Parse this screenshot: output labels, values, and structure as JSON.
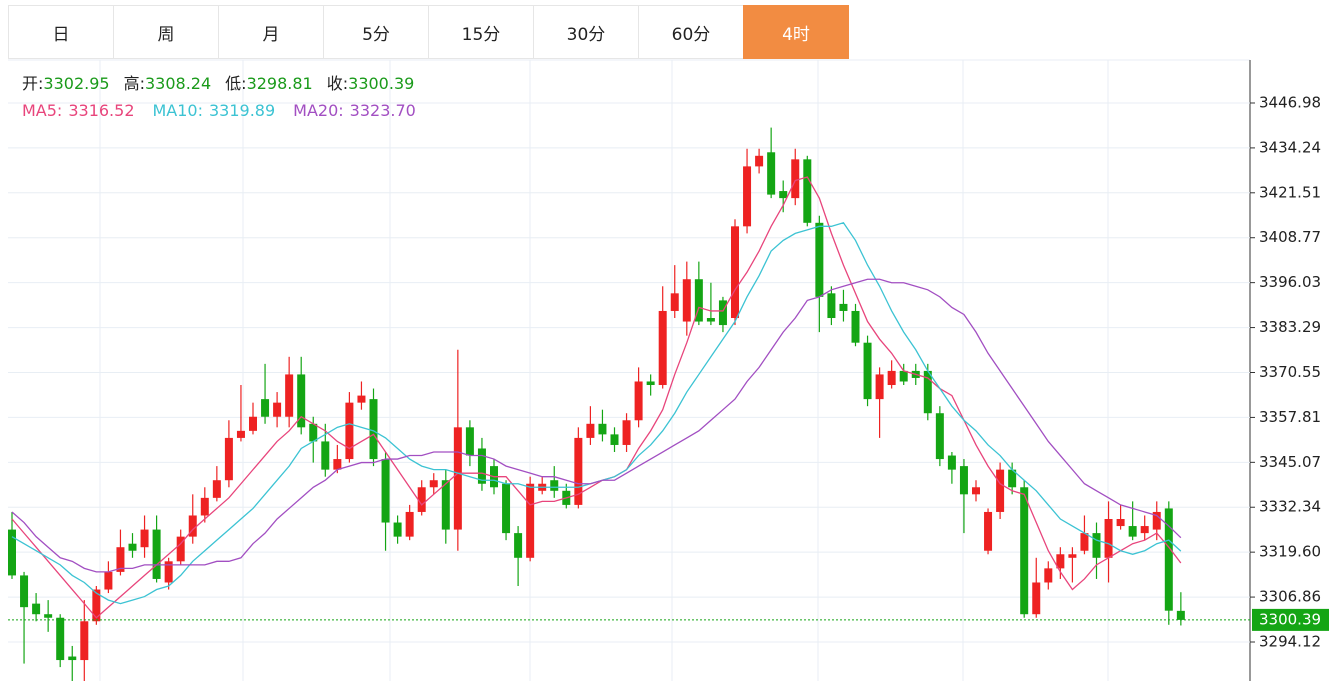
{
  "tabs": [
    "日",
    "周",
    "月",
    "5分",
    "15分",
    "30分",
    "60分",
    "4时"
  ],
  "active_tab": 7,
  "chart_data": {
    "type": "candlestick",
    "ohlc_labels": [
      "开:",
      "高:",
      "低:",
      "收:"
    ],
    "open": [
      3326,
      3313,
      3305,
      3302,
      3301,
      3290,
      3289,
      3300,
      3309,
      3314,
      3322,
      3321,
      3326,
      3311,
      3317,
      3324,
      3330,
      3335,
      3340,
      3352,
      3354,
      3363,
      3358,
      3358,
      3370,
      3356,
      3351,
      3343,
      3346,
      3362,
      3363,
      3346,
      3328,
      3324,
      3331,
      3338,
      3340,
      3326,
      3355,
      3349,
      3344,
      3339,
      3325,
      3318,
      3337,
      3340,
      3337,
      3333,
      3352,
      3356,
      3353,
      3350,
      3357,
      3368,
      3367,
      3388,
      3385,
      3397,
      3386,
      3391,
      3386,
      3412,
      3429,
      3433,
      3422,
      3420,
      3431,
      3413,
      3393,
      3390,
      3388,
      3379,
      3363,
      3367,
      3371,
      3371,
      3371,
      3359,
      3347,
      3344,
      3336,
      3320,
      3331,
      3343,
      3338,
      3302,
      3311,
      3315,
      3318,
      3320,
      3325,
      3318,
      3327,
      3327,
      3325,
      3326,
      3332,
      3302.95
    ],
    "high": [
      3331,
      3314,
      3308,
      3306,
      3302,
      3293,
      3306,
      3310,
      3317,
      3326,
      3325,
      3330,
      3330,
      3318,
      3326,
      3336,
      3338,
      3344,
      3357,
      3367,
      3362,
      3373,
      3365,
      3375,
      3375,
      3358,
      3356,
      3350,
      3365,
      3368,
      3366,
      3348,
      3330,
      3333,
      3340,
      3342,
      3343,
      3377,
      3357,
      3352,
      3346,
      3340,
      3327,
      3341,
      3341,
      3344,
      3339,
      3355,
      3361,
      3360,
      3355,
      3359,
      3372,
      3370,
      3395,
      3401,
      3402,
      3402,
      3396,
      3392,
      3414,
      3434,
      3434,
      3440,
      3425,
      3434,
      3432,
      3415,
      3395,
      3394,
      3390,
      3381,
      3372,
      3374,
      3373,
      3373,
      3373,
      3361,
      3348,
      3346,
      3340,
      3332,
      3345,
      3345,
      3340,
      3318,
      3317,
      3321,
      3321,
      3330,
      3328,
      3334,
      3333,
      3334,
      3330,
      3334,
      3334,
      3308.24
    ],
    "low": [
      3312,
      3288,
      3300,
      3297,
      3287,
      3283,
      3283,
      3299,
      3308,
      3313,
      3318,
      3318,
      3311,
      3309,
      3316,
      3322,
      3328,
      3334,
      3338,
      3351,
      3353,
      3356,
      3355,
      3355,
      3353,
      3345,
      3341,
      3342,
      3345,
      3360,
      3344,
      3320,
      3322,
      3323,
      3330,
      3336,
      3322,
      3320,
      3344,
      3337,
      3336,
      3323,
      3310,
      3317,
      3336,
      3335,
      3332,
      3332,
      3350,
      3351,
      3348,
      3348,
      3355,
      3364,
      3366,
      3386,
      3381,
      3384,
      3384,
      3382,
      3384,
      3410,
      3427,
      3420,
      3416,
      3418,
      3412,
      3382,
      3384,
      3385,
      3378,
      3361,
      3352,
      3366,
      3367,
      3367,
      3357,
      3344,
      3339,
      3325,
      3334,
      3319,
      3329,
      3336,
      3301,
      3301,
      3309,
      3312,
      3311,
      3319,
      3312,
      3311,
      3326,
      3323,
      3323,
      3323,
      3299,
      3298.81
    ],
    "close": [
      3313,
      3304,
      3302,
      3301,
      3289,
      3289,
      3300,
      3309,
      3314,
      3321,
      3320,
      3326,
      3312,
      3317,
      3324,
      3330,
      3335,
      3340,
      3352,
      3354,
      3358,
      3358,
      3362,
      3370,
      3355,
      3351,
      3343,
      3346,
      3362,
      3364,
      3346,
      3328,
      3324,
      3331,
      3338,
      3340,
      3326,
      3355,
      3347,
      3339,
      3338,
      3325,
      3318,
      3339,
      3339,
      3337,
      3333,
      3352,
      3356,
      3353,
      3350,
      3357,
      3368,
      3367,
      3388,
      3393,
      3397,
      3385,
      3385,
      3384,
      3412,
      3429,
      3432,
      3421,
      3420,
      3431,
      3413,
      3392,
      3386,
      3388,
      3379,
      3363,
      3370,
      3371,
      3368,
      3369,
      3359,
      3346,
      3343,
      3336,
      3338,
      3331,
      3343,
      3338,
      3302,
      3311,
      3315,
      3319,
      3319,
      3325,
      3318,
      3329,
      3329,
      3324,
      3327,
      3331,
      3303,
      3300.39
    ],
    "ma": [
      {
        "name": "MA5:",
        "color": "#e8457c",
        "legend_value": "3316.52",
        "values": [
          3329,
          3325,
          3321,
          3317,
          3313,
          3309,
          3305,
          3301,
          3304,
          3307,
          3310,
          3313,
          3316,
          3319,
          3322,
          3326,
          3329,
          3332,
          3335,
          3339,
          3343,
          3347,
          3351,
          3354,
          3358,
          3356,
          3354,
          3351,
          3349,
          3351,
          3353,
          3348,
          3343,
          3338,
          3333,
          3336,
          3339,
          3342,
          3342,
          3342,
          3341,
          3341,
          3337,
          3333,
          3334,
          3334,
          3335,
          3336,
          3338,
          3340,
          3341,
          3343,
          3349,
          3354,
          3360,
          3370,
          3379,
          3389,
          3388,
          3388,
          3394,
          3399,
          3405,
          3412,
          3418,
          3425,
          3426,
          3420,
          3410,
          3401,
          3393,
          3385,
          3380,
          3376,
          3371,
          3370,
          3369,
          3366,
          3364,
          3357,
          3350,
          3344,
          3339,
          3337,
          3336,
          3328,
          3320,
          3314,
          3309,
          3312,
          3316,
          3318,
          3320,
          3322,
          3323,
          3325,
          3321,
          3316.52
        ]
      },
      {
        "name": "MA10:",
        "color": "#3cc3d3",
        "legend_value": "3319.89",
        "values": [
          3324,
          3322,
          3320,
          3318,
          3316,
          3313,
          3311,
          3308,
          3306,
          3305,
          3306,
          3307,
          3309,
          3310,
          3313,
          3317,
          3320,
          3323,
          3326,
          3329,
          3332,
          3336,
          3340,
          3344,
          3349,
          3351,
          3353,
          3355,
          3356,
          3355,
          3354,
          3352,
          3349,
          3346,
          3344,
          3343,
          3343,
          3342,
          3341,
          3340,
          3340,
          3339,
          3339,
          3338,
          3338,
          3338,
          3338,
          3338,
          3339,
          3340,
          3341,
          3343,
          3347,
          3350,
          3354,
          3359,
          3365,
          3370,
          3375,
          3380,
          3385,
          3392,
          3398,
          3405,
          3408,
          3410,
          3411,
          3412,
          3412,
          3413,
          3408,
          3401,
          3395,
          3388,
          3382,
          3377,
          3371,
          3366,
          3361,
          3357,
          3354,
          3350,
          3347,
          3343,
          3340,
          3337,
          3333,
          3329,
          3327,
          3325,
          3323,
          3322,
          3320,
          3319,
          3320,
          3322,
          3323,
          3319.89
        ]
      },
      {
        "name": "MA20:",
        "color": "#a24fc2",
        "legend_value": "3323.70",
        "values": [
          3331,
          3328,
          3324,
          3321,
          3318,
          3317,
          3315,
          3314,
          3314,
          3315,
          3315,
          3316,
          3316,
          3316,
          3316,
          3316,
          3316,
          3317,
          3317,
          3318,
          3322,
          3325,
          3329,
          3332,
          3335,
          3338,
          3340,
          3343,
          3344,
          3345,
          3345,
          3346,
          3346,
          3347,
          3347,
          3348,
          3348,
          3348,
          3347,
          3347,
          3346,
          3344,
          3343,
          3342,
          3341,
          3341,
          3340,
          3339,
          3339,
          3340,
          3340,
          3342,
          3344,
          3346,
          3348,
          3350,
          3352,
          3354,
          3357,
          3360,
          3363,
          3368,
          3372,
          3377,
          3382,
          3386,
          3391,
          3392,
          3394,
          3395,
          3396,
          3397,
          3397,
          3396,
          3396,
          3395,
          3394,
          3392,
          3389,
          3387,
          3382,
          3376,
          3371,
          3366,
          3361,
          3356,
          3351,
          3347,
          3343,
          3339,
          3337,
          3335,
          3333,
          3332,
          3331,
          3330,
          3327,
          3323.7
        ]
      }
    ],
    "up_color": "#ee2222",
    "down_color": "#14a514",
    "ylim": [
      3283.06,
      3459.17
    ],
    "yticks": [
      3294.12,
      3306.86,
      {
        "value": 3319.6,
        "label": "3319.60"
      },
      3332.34,
      3345.07,
      3357.81,
      3370.55,
      3383.29,
      3396.03,
      3408.77,
      3421.51,
      3434.24,
      3446.98
    ],
    "grid": true
  }
}
